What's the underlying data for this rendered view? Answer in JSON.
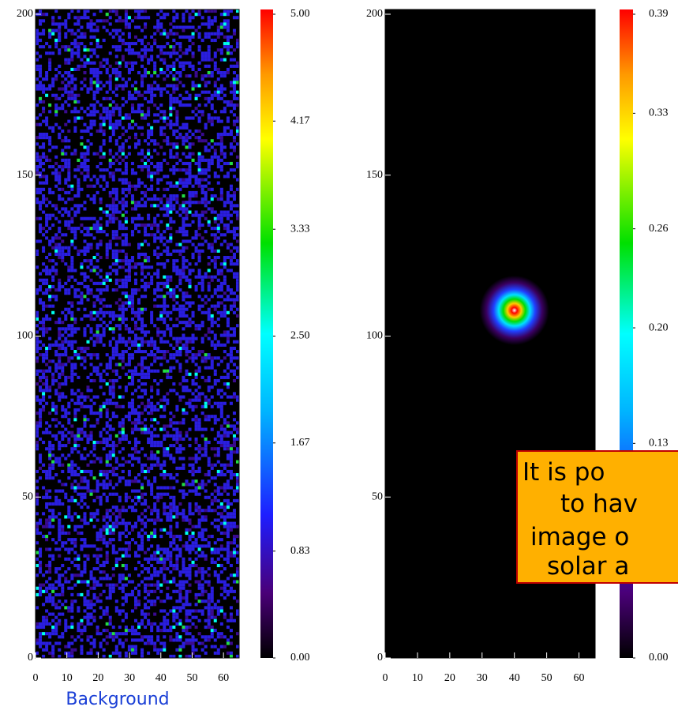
{
  "chart_data": [
    {
      "type": "heatmap",
      "xlabel": "Background",
      "xlim": [
        0,
        65
      ],
      "xticks": [
        0,
        10,
        20,
        30,
        40,
        50,
        60
      ],
      "ylim": [
        0,
        200
      ],
      "yticks": [
        0,
        50,
        100,
        150,
        200
      ],
      "clim": [
        0,
        5
      ],
      "cticks": [
        {
          "value": 0,
          "label": "0.00"
        },
        0.83,
        1.67,
        {
          "value": 2.5,
          "label": "2.50"
        },
        3.33,
        4.17,
        {
          "value": 5,
          "label": "5.00"
        }
      ]
    },
    {
      "type": "heatmap",
      "xlim": [
        0,
        65
      ],
      "xticks": [
        0,
        10,
        20,
        30,
        40,
        50,
        60
      ],
      "ylim": [
        0,
        200
      ],
      "yticks": [
        0,
        50,
        100,
        150,
        200
      ],
      "clim": [
        0,
        0.39
      ],
      "cticks": [
        {
          "value": 0,
          "label": "0.00"
        },
        0.13,
        {
          "value": 0.2,
          "label": "0.20"
        },
        0.26,
        0.33,
        0.39
      ]
    }
  ],
  "callout": {
    "lines": [
      "It is po",
      "to hav",
      "image o",
      "solar a"
    ]
  }
}
